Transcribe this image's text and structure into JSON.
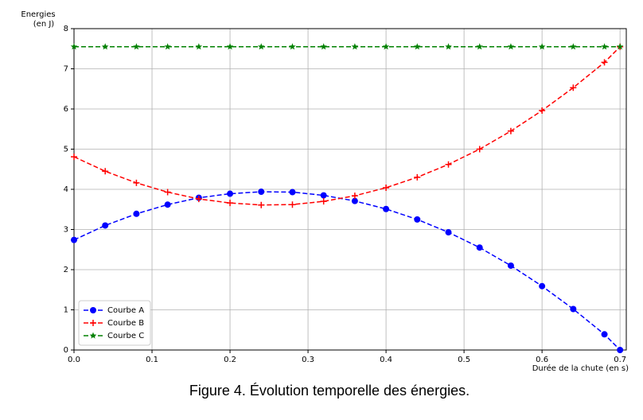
{
  "chart_data": {
    "type": "line",
    "caption": "Figure 4. Évolution temporelle des énergies.",
    "y_label_lines": [
      "Energies",
      "(en J)"
    ],
    "x_label": "Durée de la chute (en s)",
    "x": [
      0,
      0.04,
      0.08,
      0.12,
      0.16,
      0.2,
      0.24,
      0.28,
      0.32,
      0.36,
      0.4,
      0.44,
      0.48,
      0.52,
      0.56,
      0.6,
      0.64,
      0.68,
      0.7
    ],
    "series": [
      {
        "name": "Courbe A",
        "color": "#0000ff",
        "marker": "circle",
        "values": [
          2.74,
          3.1,
          3.39,
          3.62,
          3.79,
          3.89,
          3.94,
          3.93,
          3.85,
          3.71,
          3.51,
          3.25,
          2.93,
          2.55,
          2.1,
          1.59,
          1.02,
          0.39,
          0
        ]
      },
      {
        "name": "Courbe B",
        "color": "#ff0000",
        "marker": "plus",
        "values": [
          4.81,
          4.45,
          4.16,
          3.93,
          3.76,
          3.66,
          3.61,
          3.62,
          3.7,
          3.84,
          4.04,
          4.3,
          4.62,
          5.0,
          5.45,
          5.96,
          6.53,
          7.16,
          7.55
        ]
      },
      {
        "name": "Courbe C",
        "color": "#008000",
        "marker": "star",
        "values": [
          7.55,
          7.55,
          7.55,
          7.55,
          7.55,
          7.55,
          7.55,
          7.55,
          7.55,
          7.55,
          7.55,
          7.55,
          7.55,
          7.55,
          7.55,
          7.55,
          7.55,
          7.55,
          7.55
        ]
      }
    ],
    "xlim": [
      0,
      0.708
    ],
    "ylim": [
      0,
      8
    ],
    "xticks": [
      {
        "value": 0,
        "label": "0.0"
      },
      0.1,
      0.2,
      0.3,
      0.4,
      0.5,
      0.6,
      0.7
    ],
    "yticks": [
      0,
      1,
      2,
      3,
      4,
      5,
      6,
      7,
      8
    ],
    "grid": true,
    "legend": "lower left",
    "line_style": "dashed"
  }
}
